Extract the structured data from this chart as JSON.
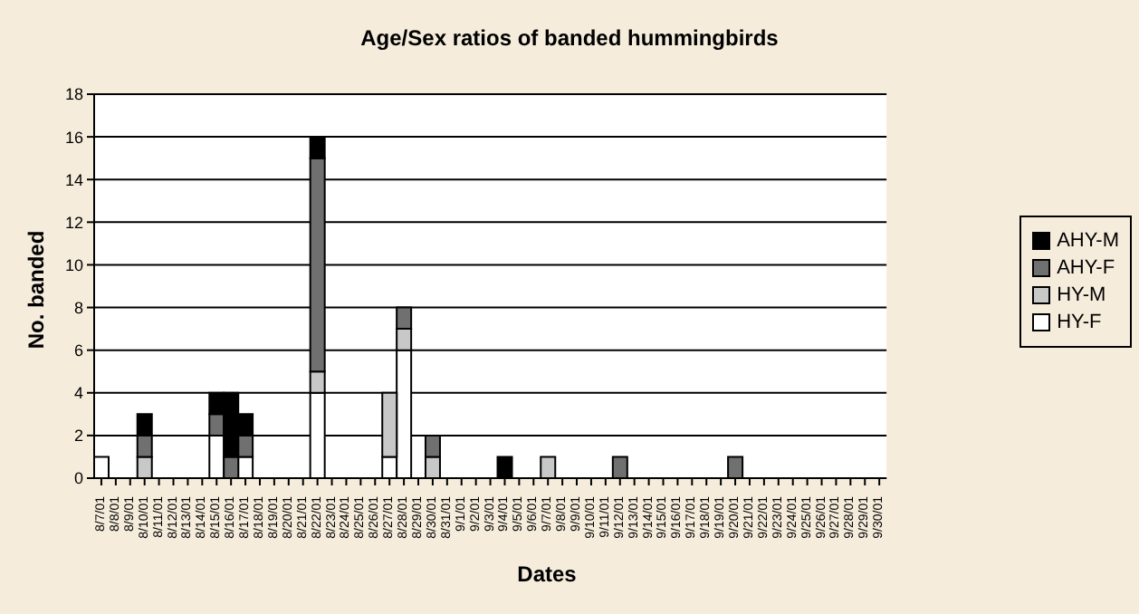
{
  "chart_data": {
    "type": "bar",
    "title": "Age/Sex ratios of banded hummingbirds",
    "xlabel": "Dates",
    "ylabel": "No. banded",
    "categories": [
      "8/7/01",
      "8/8/01",
      "8/9/01",
      "8/10/01",
      "8/11/01",
      "8/12/01",
      "8/13/01",
      "8/14/01",
      "8/15/01",
      "8/16/01",
      "8/17/01",
      "8/18/01",
      "8/19/01",
      "8/20/01",
      "8/21/01",
      "8/22/01",
      "8/23/01",
      "8/24/01",
      "8/25/01",
      "8/26/01",
      "8/27/01",
      "8/28/01",
      "8/29/01",
      "8/30/01",
      "8/31/01",
      "9/1/01",
      "9/2/01",
      "9/3/01",
      "9/4/01",
      "9/5/01",
      "9/6/01",
      "9/7/01",
      "9/8/01",
      "9/9/01",
      "9/10/01",
      "9/11/01",
      "9/12/01",
      "9/13/01",
      "9/14/01",
      "9/15/01",
      "9/16/01",
      "9/17/01",
      "9/18/01",
      "9/19/01",
      "9/20/01",
      "9/21/01",
      "9/22/01",
      "9/23/01",
      "9/24/01",
      "9/25/01",
      "9/26/01",
      "9/27/01",
      "9/28/01",
      "9/29/01",
      "9/30/01"
    ],
    "series": [
      {
        "name": "HY-F",
        "color": "#ffffff",
        "values": [
          1,
          0,
          0,
          0,
          0,
          0,
          0,
          0,
          2,
          0,
          1,
          0,
          0,
          0,
          0,
          4,
          0,
          0,
          0,
          0,
          1,
          6,
          0,
          0,
          0,
          0,
          0,
          0,
          0,
          0,
          0,
          0,
          0,
          0,
          0,
          0,
          0,
          0,
          0,
          0,
          0,
          0,
          0,
          0,
          0,
          0,
          0,
          0,
          0,
          0,
          0,
          0,
          0,
          0,
          0
        ]
      },
      {
        "name": "HY-M",
        "color": "#c8c8c8",
        "values": [
          0,
          0,
          0,
          1,
          0,
          0,
          0,
          0,
          0,
          0,
          0,
          0,
          0,
          0,
          0,
          1,
          0,
          0,
          0,
          0,
          3,
          1,
          0,
          1,
          0,
          0,
          0,
          0,
          0,
          0,
          0,
          1,
          0,
          0,
          0,
          0,
          0,
          0,
          0,
          0,
          0,
          0,
          0,
          0,
          0,
          0,
          0,
          0,
          0,
          0,
          0,
          0,
          0,
          0,
          0
        ]
      },
      {
        "name": "AHY-F",
        "color": "#707070",
        "values": [
          0,
          0,
          0,
          1,
          0,
          0,
          0,
          0,
          1,
          1,
          1,
          0,
          0,
          0,
          0,
          10,
          0,
          0,
          0,
          0,
          0,
          1,
          0,
          1,
          0,
          0,
          0,
          0,
          0,
          0,
          0,
          0,
          0,
          0,
          0,
          0,
          1,
          0,
          0,
          0,
          0,
          0,
          0,
          0,
          1,
          0,
          0,
          0,
          0,
          0,
          0,
          0,
          0,
          0,
          0
        ]
      },
      {
        "name": "AHY-M",
        "color": "#000000",
        "values": [
          0,
          0,
          0,
          1,
          0,
          0,
          0,
          0,
          1,
          3,
          1,
          0,
          0,
          0,
          0,
          1,
          0,
          0,
          0,
          0,
          0,
          0,
          0,
          0,
          0,
          0,
          0,
          0,
          1,
          0,
          0,
          0,
          0,
          0,
          0,
          0,
          0,
          0,
          0,
          0,
          0,
          0,
          0,
          0,
          0,
          0,
          0,
          0,
          0,
          0,
          0,
          0,
          0,
          0,
          0
        ]
      }
    ],
    "stacked": true,
    "ylim": [
      0,
      18
    ],
    "yticks": [
      0,
      2,
      4,
      6,
      8,
      10,
      12,
      14,
      16,
      18
    ],
    "grid": "y",
    "legend": "right"
  }
}
